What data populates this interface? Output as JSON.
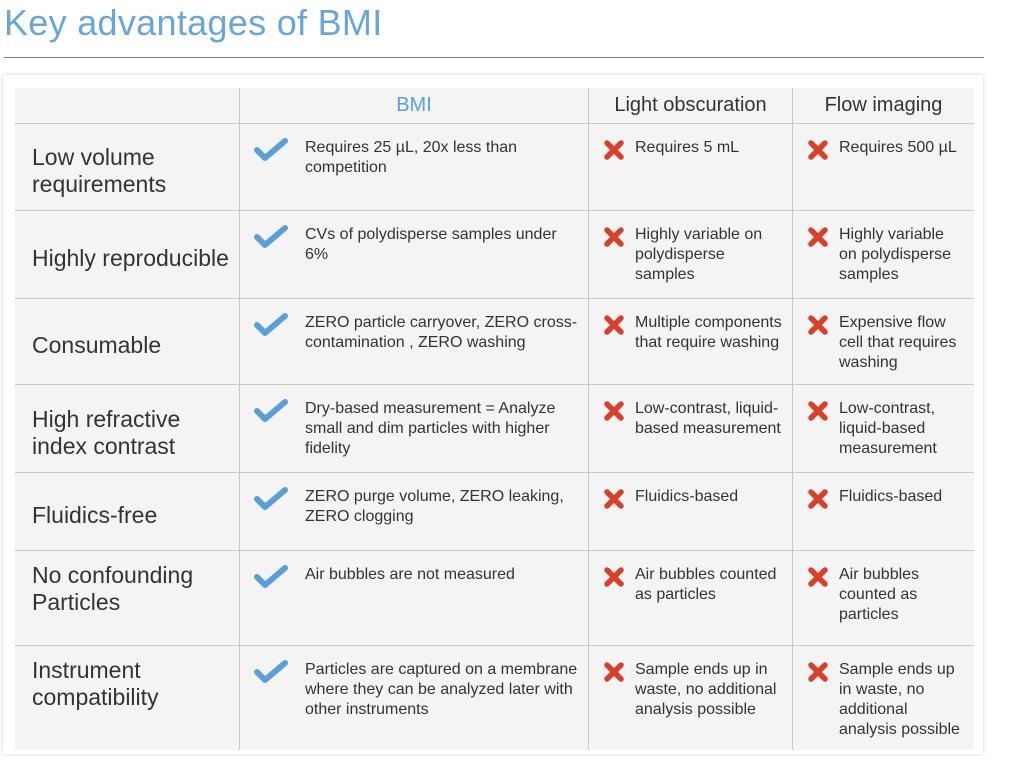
{
  "title": "Key advantages of BMI",
  "headers": [
    "",
    "BMI",
    "Light obscuration",
    "Flow imaging"
  ],
  "colors": {
    "bmi_accent": "#5aa0dc",
    "check": "#5b9fd9",
    "cross": "#d8402a"
  },
  "rows": [
    {
      "feature": "Low volume requirements",
      "bmi": "Requires 25 µL, 20x less than competition",
      "lo": "Requires 5 mL",
      "fi": "Requires 500 µL"
    },
    {
      "feature": "Highly reproducible",
      "bmi": "CVs of polydisperse samples under 6%",
      "lo": "Highly variable on  polydisperse samples",
      "fi": "Highly variable on  polydisperse samples"
    },
    {
      "feature": "Consumable",
      "bmi": "ZERO particle carryover, ZERO cross-contamination , ZERO washing",
      "lo": "Multiple components that require washing",
      "fi": "Expensive flow cell that requires washing"
    },
    {
      "feature": "High refractive index contrast",
      "bmi": "Dry-based measurement = Analyze small and dim particles with higher fidelity",
      "lo": "Low-contrast, liquid-based measurement",
      "fi": "Low-contrast, liquid-based measurement"
    },
    {
      "feature": "Fluidics-free",
      "bmi": "ZERO purge volume, ZERO leaking, ZERO clogging",
      "lo": "Fluidics-based",
      "fi": "Fluidics-based"
    },
    {
      "feature": "No confounding Particles",
      "bmi": "Air bubbles are not measured",
      "lo": "Air bubbles counted as particles",
      "fi": "Air bubbles counted as particles"
    },
    {
      "feature": "Instrument compatibility",
      "bmi": "Particles are captured on a membrane where they can be analyzed later with other instruments",
      "lo": "Sample ends up in waste, no additional analysis possible",
      "fi": "Sample ends up in waste, no additional analysis possible"
    }
  ]
}
